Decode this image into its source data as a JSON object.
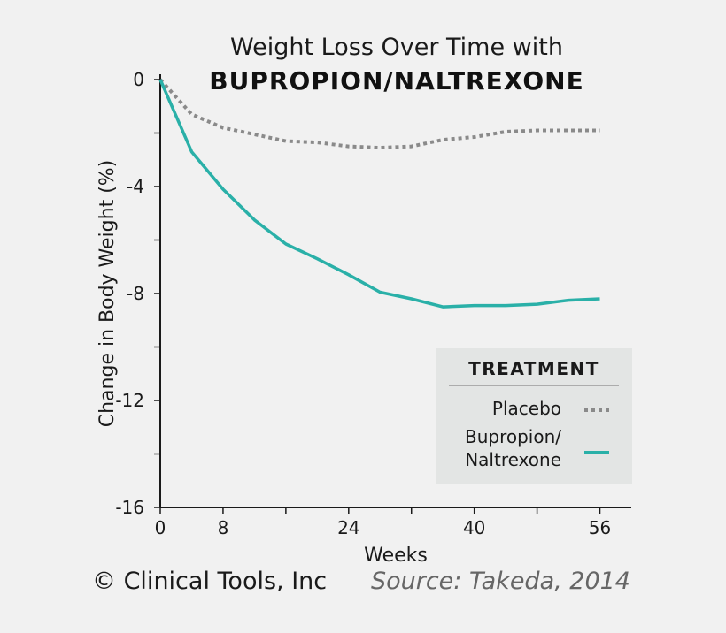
{
  "chart_data": {
    "type": "line",
    "title_line1": "Weight Loss Over Time with",
    "title_line2": "BUPROPION/NALTREXONE",
    "xlabel": "Weeks",
    "ylabel": "Change in Body Weight (%)",
    "xlim": [
      0,
      60
    ],
    "ylim": [
      -16,
      0
    ],
    "x_ticks": [
      0,
      8,
      16,
      24,
      32,
      40,
      48,
      56
    ],
    "x_tick_labels": [
      "0",
      "8",
      "24",
      "40",
      "56"
    ],
    "x_tick_label_values": [
      0,
      8,
      24,
      40,
      56
    ],
    "y_ticks": [
      0,
      -2,
      -4,
      -6,
      -8,
      -10,
      -12,
      -14,
      -16
    ],
    "y_tick_labels": [
      "0",
      "-4",
      "-8",
      "-12",
      "-16"
    ],
    "y_tick_label_values": [
      0,
      -4,
      -8,
      -12,
      -16
    ],
    "grid": false,
    "legend": {
      "title": "TREATMENT",
      "placement": "bottom-right",
      "entries": [
        {
          "lines": [
            "Placebo"
          ],
          "style": "dotted",
          "color": "#8a8a8a"
        },
        {
          "lines": [
            "Bupropion/",
            "Naltrexone"
          ],
          "style": "solid",
          "color": "#2ab0a8"
        }
      ]
    },
    "series": [
      {
        "name": "Placebo",
        "color": "#8a8a8a",
        "style": "dotted",
        "x": [
          0,
          4,
          8,
          12,
          16,
          20,
          24,
          28,
          32,
          36,
          40,
          44,
          48,
          52,
          56
        ],
        "y": [
          0,
          -1.3,
          -1.8,
          -2.05,
          -2.3,
          -2.35,
          -2.5,
          -2.55,
          -2.5,
          -2.25,
          -2.15,
          -1.95,
          -1.9,
          -1.9,
          -1.9
        ]
      },
      {
        "name": "Bupropion/Naltrexone",
        "color": "#2ab0a8",
        "style": "solid",
        "x": [
          0,
          4,
          8,
          12,
          16,
          20,
          24,
          28,
          32,
          36,
          40,
          44,
          48,
          52,
          56
        ],
        "y": [
          0,
          -2.7,
          -4.1,
          -5.25,
          -6.15,
          -6.7,
          -7.3,
          -7.95,
          -8.2,
          -8.5,
          -8.45,
          -8.45,
          -8.4,
          -8.25,
          -8.2
        ]
      }
    ]
  },
  "footer": {
    "copyright": "© Clinical Tools, Inc",
    "source": "Source: Takeda, 2014"
  }
}
